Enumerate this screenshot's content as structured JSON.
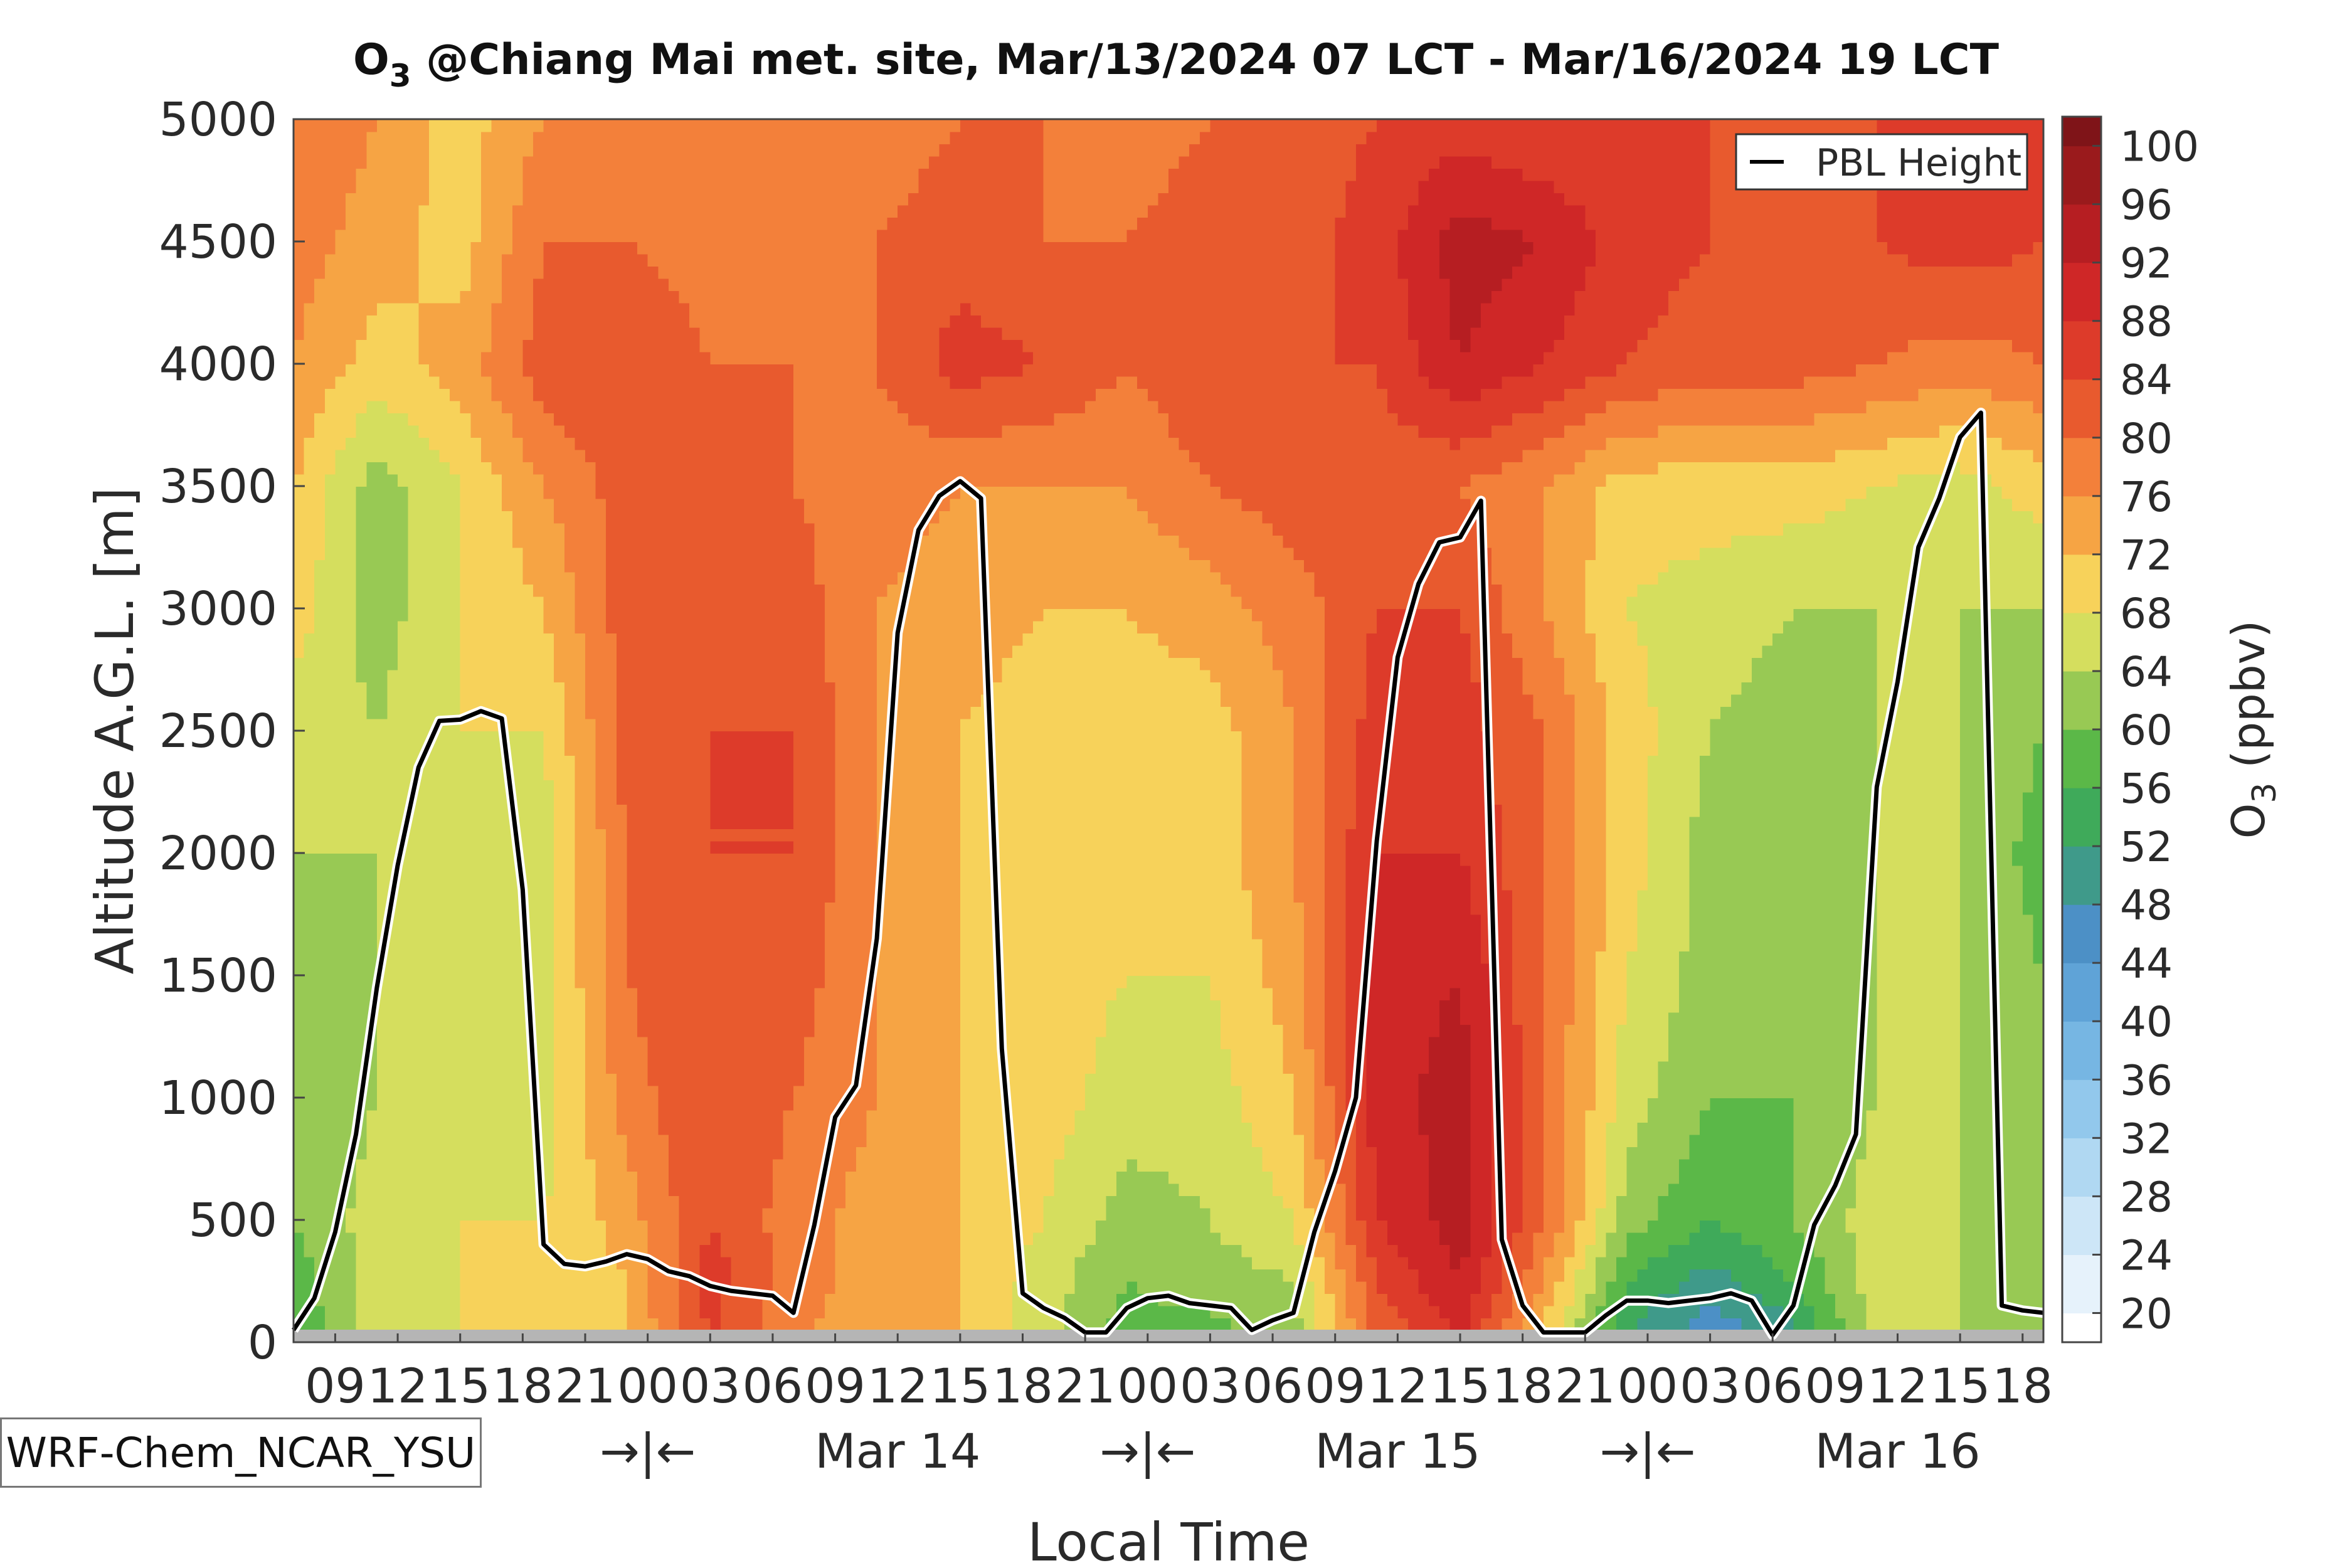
{
  "chart_data": {
    "type": "heatmap",
    "title_main": "O",
    "title_sub": "3",
    "title_rest": " @Chiang Mai met. site, Mar/13/2024 07 LCT - Mar/16/2024 19 LCT",
    "xlabel": "Local Time",
    "ylabel": "Altitude A.G.L. [m]",
    "colorbar_label_main": "O",
    "colorbar_label_sub": "3",
    "colorbar_label_rest": " (ppbv)",
    "legend": {
      "entry": "PBL Height",
      "position": "top-right"
    },
    "model_label": "WRF-Chem_NCAR_YSU",
    "xlim": [
      0,
      84
    ],
    "ylim": [
      0,
      5000
    ],
    "y_ticks": [
      0,
      500,
      1000,
      1500,
      2000,
      2500,
      3000,
      3500,
      4000,
      4500,
      5000
    ],
    "x_ticks": [
      {
        "x": 2,
        "label": "09"
      },
      {
        "x": 5,
        "label": "12"
      },
      {
        "x": 8,
        "label": "15"
      },
      {
        "x": 11,
        "label": "18"
      },
      {
        "x": 14,
        "label": "21"
      },
      {
        "x": 17,
        "label": "00"
      },
      {
        "x": 20,
        "label": "03"
      },
      {
        "x": 23,
        "label": "06"
      },
      {
        "x": 26,
        "label": "09"
      },
      {
        "x": 29,
        "label": "12"
      },
      {
        "x": 32,
        "label": "15"
      },
      {
        "x": 35,
        "label": "18"
      },
      {
        "x": 38,
        "label": "21"
      },
      {
        "x": 41,
        "label": "00"
      },
      {
        "x": 44,
        "label": "03"
      },
      {
        "x": 47,
        "label": "06"
      },
      {
        "x": 50,
        "label": "09"
      },
      {
        "x": 53,
        "label": "12"
      },
      {
        "x": 56,
        "label": "15"
      },
      {
        "x": 59,
        "label": "18"
      },
      {
        "x": 62,
        "label": "21"
      },
      {
        "x": 65,
        "label": "00"
      },
      {
        "x": 68,
        "label": "03"
      },
      {
        "x": 71,
        "label": "06"
      },
      {
        "x": 74,
        "label": "09"
      },
      {
        "x": 77,
        "label": "12"
      },
      {
        "x": 80,
        "label": "15"
      },
      {
        "x": 83,
        "label": "18"
      }
    ],
    "day_labels": [
      {
        "x": 17,
        "label": "→|←"
      },
      {
        "x": 29,
        "label": "Mar 14"
      },
      {
        "x": 41,
        "label": "→|←"
      },
      {
        "x": 53,
        "label": "Mar 15"
      },
      {
        "x": 65,
        "label": "→|←"
      },
      {
        "x": 77,
        "label": "Mar 16"
      }
    ],
    "colorbar": {
      "ticks": [
        20,
        24,
        28,
        32,
        36,
        40,
        44,
        48,
        52,
        56,
        60,
        64,
        68,
        72,
        76,
        80,
        84,
        88,
        92,
        96,
        100
      ],
      "colors": [
        "#ffffff",
        "#e6f2fb",
        "#cde6f7",
        "#b0d8f2",
        "#92c8ec",
        "#76b6e3",
        "#5fa3d7",
        "#4c90c6",
        "#3f9a8a",
        "#3faa5a",
        "#5bb848",
        "#98c954",
        "#d5de5e",
        "#f7d25a",
        "#f6a444",
        "#f3803a",
        "#e85a2e",
        "#dd3b2a",
        "#cf2727",
        "#b61e22",
        "#9a1a1c",
        "#7f1418"
      ]
    },
    "pbl_height": {
      "x": [
        0,
        1,
        2,
        3,
        4,
        5,
        6,
        7,
        8,
        9,
        10,
        11,
        12,
        13,
        14,
        15,
        16,
        17,
        18,
        19,
        20,
        21,
        22,
        23,
        24,
        25,
        26,
        27,
        28,
        29,
        30,
        31,
        32,
        33,
        34,
        35,
        36,
        37,
        38,
        39,
        40,
        41,
        42,
        43,
        44,
        45,
        46,
        47,
        48,
        49,
        50,
        51,
        52,
        53,
        54,
        55,
        56,
        57,
        58,
        59,
        60,
        61,
        62,
        63,
        64,
        65,
        66,
        67,
        68,
        69,
        70,
        71,
        72,
        73,
        74,
        75,
        76,
        77,
        78,
        79,
        80,
        81,
        82,
        83,
        84
      ],
      "y": [
        50,
        180,
        450,
        850,
        1450,
        1950,
        2350,
        2540,
        2545,
        2580,
        2550,
        1850,
        400,
        320,
        310,
        330,
        360,
        340,
        290,
        270,
        230,
        210,
        200,
        190,
        120,
        480,
        920,
        1050,
        1650,
        2900,
        3320,
        3460,
        3520,
        3450,
        1200,
        200,
        140,
        100,
        40,
        40,
        140,
        180,
        190,
        160,
        150,
        140,
        50,
        90,
        120,
        450,
        700,
        1000,
        2050,
        2800,
        3100,
        3270,
        3290,
        3440,
        420,
        150,
        40,
        40,
        40,
        110,
        170,
        170,
        160,
        170,
        180,
        200,
        170,
        30,
        150,
        480,
        640,
        850,
        2270,
        2700,
        3250,
        3450,
        3700,
        3800,
        150,
        130,
        120
      ]
    },
    "o3_field": {
      "x": [
        0,
        4,
        8,
        12,
        16,
        20,
        24,
        28,
        32,
        36,
        40,
        44,
        48,
        52,
        56,
        60,
        64,
        68,
        72,
        76,
        80,
        84
      ],
      "y": [
        0,
        250,
        500,
        1000,
        1500,
        2000,
        2500,
        3000,
        3500,
        4000,
        4500,
        5000
      ],
      "z": [
        [
          56,
          66,
          68,
          68,
          72,
          84,
          76,
          74,
          72,
          66,
          58,
          58,
          62,
          80,
          88,
          70,
          52,
          44,
          50,
          66,
          64,
          62
        ],
        [
          58,
          66,
          68,
          68,
          72,
          86,
          78,
          74,
          72,
          66,
          60,
          62,
          64,
          84,
          92,
          76,
          56,
          50,
          56,
          66,
          64,
          62
        ],
        [
          60,
          66,
          68,
          68,
          74,
          84,
          78,
          74,
          72,
          68,
          62,
          64,
          68,
          88,
          94,
          80,
          62,
          56,
          60,
          66,
          64,
          62
        ],
        [
          60,
          64,
          68,
          66,
          78,
          84,
          80,
          76,
          72,
          70,
          66,
          66,
          72,
          90,
          94,
          80,
          66,
          60,
          60,
          64,
          64,
          60
        ],
        [
          62,
          64,
          68,
          66,
          80,
          84,
          82,
          76,
          72,
          70,
          68,
          68,
          74,
          90,
          92,
          80,
          68,
          62,
          60,
          64,
          64,
          60
        ],
        [
          64,
          64,
          68,
          66,
          80,
          84,
          84,
          76,
          72,
          70,
          68,
          70,
          76,
          88,
          88,
          80,
          70,
          62,
          60,
          64,
          64,
          58
        ],
        [
          66,
          64,
          68,
          68,
          82,
          84,
          84,
          76,
          72,
          70,
          70,
          70,
          76,
          86,
          86,
          80,
          70,
          64,
          62,
          64,
          64,
          60
        ],
        [
          70,
          62,
          68,
          72,
          82,
          82,
          82,
          76,
          74,
          72,
          72,
          74,
          78,
          84,
          84,
          76,
          68,
          66,
          64,
          64,
          64,
          64
        ],
        [
          72,
          62,
          68,
          76,
          82,
          82,
          80,
          78,
          76,
          76,
          76,
          80,
          82,
          82,
          80,
          76,
          70,
          70,
          70,
          68,
          66,
          70
        ],
        [
          76,
          70,
          74,
          82,
          84,
          80,
          80,
          80,
          86,
          84,
          80,
          84,
          84,
          84,
          92,
          88,
          84,
          82,
          82,
          80,
          78,
          80
        ],
        [
          78,
          74,
          70,
          80,
          80,
          78,
          76,
          80,
          82,
          80,
          80,
          82,
          82,
          86,
          94,
          92,
          86,
          84,
          84,
          84,
          86,
          84
        ],
        [
          80,
          76,
          70,
          76,
          78,
          76,
          76,
          78,
          80,
          80,
          78,
          80,
          82,
          84,
          86,
          84,
          84,
          84,
          82,
          84,
          86,
          84
        ]
      ]
    }
  }
}
